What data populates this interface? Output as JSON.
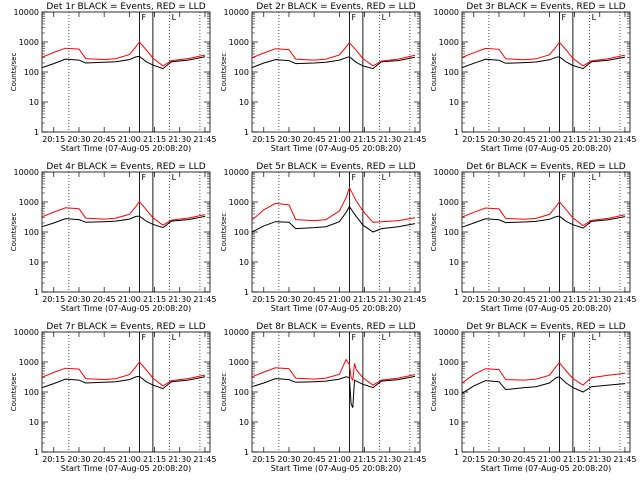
{
  "shared": {
    "xlabel": "Start Time (07-Aug-05 20:08:20)",
    "ylabel": "Counts/sec",
    "x_ticks": [
      "20:15",
      "20:30",
      "20:45",
      "21:00",
      "21:15",
      "21:30",
      "21:45"
    ],
    "y_ticks": [
      "1",
      "10",
      "100",
      "1000",
      "10000"
    ],
    "x_range": [
      "20:08",
      "21:48"
    ],
    "y_range": [
      1,
      10000
    ],
    "y_scale": "log",
    "series_colors": {
      "events": "#000000",
      "lld": "#ff0000"
    },
    "vlines_solid": [
      "21:06",
      "21:14"
    ],
    "vlines_dotted": [
      "20:24",
      "21:24",
      "21:42"
    ],
    "marker_labels": [
      "F",
      "L"
    ]
  },
  "chart_data": [
    {
      "type": "line",
      "title": "Det 1r BLACK = Events, RED = LLD",
      "detector": "1r",
      "x": [
        "20:08",
        "20:15",
        "20:22",
        "20:30",
        "20:34",
        "20:45",
        "20:52",
        "21:00",
        "21:04",
        "21:06",
        "21:10",
        "21:14",
        "21:20",
        "21:25",
        "21:35",
        "21:45"
      ],
      "series": [
        {
          "key": "events",
          "values": [
            140,
            190,
            270,
            250,
            200,
            210,
            220,
            260,
            320,
            330,
            220,
            170,
            130,
            220,
            250,
            320
          ]
        },
        {
          "key": "lld",
          "values": [
            310,
            450,
            620,
            580,
            280,
            260,
            280,
            380,
            700,
            1000,
            550,
            290,
            160,
            240,
            280,
            370
          ]
        }
      ]
    },
    {
      "type": "line",
      "title": "Det 2r BLACK = Events, RED = LLD",
      "detector": "2r",
      "x": [
        "20:08",
        "20:15",
        "20:22",
        "20:30",
        "20:34",
        "20:45",
        "20:52",
        "21:00",
        "21:04",
        "21:06",
        "21:10",
        "21:14",
        "21:20",
        "21:25",
        "21:35",
        "21:45"
      ],
      "series": [
        {
          "key": "events",
          "values": [
            140,
            200,
            260,
            240,
            190,
            200,
            210,
            250,
            300,
            320,
            210,
            160,
            130,
            220,
            240,
            310
          ]
        },
        {
          "key": "lld",
          "values": [
            300,
            430,
            600,
            560,
            270,
            250,
            270,
            370,
            680,
            950,
            530,
            280,
            160,
            230,
            270,
            360
          ]
        }
      ]
    },
    {
      "type": "line",
      "title": "Det 3r BLACK = Events, RED = LLD",
      "detector": "3r",
      "x": [
        "20:08",
        "20:15",
        "20:22",
        "20:30",
        "20:34",
        "20:45",
        "20:52",
        "21:00",
        "21:04",
        "21:06",
        "21:10",
        "21:14",
        "21:20",
        "21:25",
        "21:35",
        "21:45"
      ],
      "series": [
        {
          "key": "events",
          "values": [
            140,
            195,
            265,
            245,
            195,
            205,
            215,
            255,
            310,
            320,
            215,
            165,
            130,
            220,
            245,
            315
          ]
        },
        {
          "key": "lld",
          "values": [
            305,
            440,
            610,
            570,
            275,
            255,
            275,
            375,
            690,
            980,
            540,
            285,
            160,
            235,
            275,
            365
          ]
        }
      ]
    },
    {
      "type": "line",
      "title": "Det 4r BLACK = Events, RED = LLD",
      "detector": "4r",
      "x": [
        "20:08",
        "20:15",
        "20:22",
        "20:30",
        "20:34",
        "20:45",
        "20:52",
        "21:00",
        "21:04",
        "21:06",
        "21:10",
        "21:14",
        "21:20",
        "21:25",
        "21:35",
        "21:45"
      ],
      "series": [
        {
          "key": "events",
          "values": [
            150,
            200,
            280,
            260,
            210,
            220,
            230,
            270,
            330,
            340,
            230,
            180,
            140,
            230,
            260,
            330
          ]
        },
        {
          "key": "lld",
          "values": [
            320,
            460,
            640,
            600,
            290,
            270,
            290,
            390,
            720,
            1050,
            560,
            300,
            170,
            250,
            290,
            380
          ]
        }
      ]
    },
    {
      "type": "line",
      "title": "Det 5r BLACK = Events, RED = LLD",
      "detector": "5r",
      "x": [
        "20:08",
        "20:15",
        "20:22",
        "20:30",
        "20:34",
        "20:45",
        "20:52",
        "21:00",
        "21:04",
        "21:06",
        "21:10",
        "21:14",
        "21:20",
        "21:25",
        "21:35",
        "21:45"
      ],
      "series": [
        {
          "key": "events",
          "values": [
            100,
            160,
            220,
            210,
            130,
            140,
            150,
            220,
            450,
            700,
            330,
            170,
            100,
            130,
            150,
            190
          ]
        },
        {
          "key": "lld",
          "values": [
            250,
            550,
            900,
            800,
            260,
            240,
            260,
            500,
            1400,
            3000,
            1100,
            500,
            210,
            220,
            240,
            300
          ]
        }
      ]
    },
    {
      "type": "line",
      "title": "Det 6r BLACK = Events, RED = LLD",
      "detector": "6r",
      "x": [
        "20:08",
        "20:15",
        "20:22",
        "20:30",
        "20:34",
        "20:45",
        "20:52",
        "21:00",
        "21:04",
        "21:06",
        "21:10",
        "21:14",
        "21:20",
        "21:25",
        "21:35",
        "21:45"
      ],
      "series": [
        {
          "key": "events",
          "values": [
            145,
            200,
            275,
            255,
            205,
            215,
            225,
            265,
            325,
            335,
            225,
            175,
            135,
            225,
            255,
            325
          ]
        },
        {
          "key": "lld",
          "values": [
            315,
            455,
            630,
            590,
            285,
            265,
            285,
            385,
            710,
            1020,
            555,
            295,
            165,
            245,
            285,
            375
          ]
        }
      ]
    },
    {
      "type": "line",
      "title": "Det 7r BLACK = Events, RED = LLD",
      "detector": "7r",
      "x": [
        "20:08",
        "20:15",
        "20:22",
        "20:30",
        "20:34",
        "20:45",
        "20:52",
        "21:00",
        "21:04",
        "21:06",
        "21:10",
        "21:14",
        "21:20",
        "21:25",
        "21:35",
        "21:45"
      ],
      "series": [
        {
          "key": "events",
          "values": [
            140,
            190,
            270,
            250,
            200,
            210,
            220,
            260,
            320,
            330,
            220,
            170,
            130,
            220,
            250,
            320
          ]
        },
        {
          "key": "lld",
          "values": [
            310,
            450,
            620,
            580,
            280,
            260,
            280,
            380,
            700,
            1000,
            550,
            290,
            160,
            240,
            280,
            370
          ]
        }
      ]
    },
    {
      "type": "line",
      "title": "Det 8r BLACK = Events, RED = LLD",
      "detector": "8r",
      "x": [
        "20:08",
        "20:15",
        "20:22",
        "20:30",
        "20:34",
        "20:45",
        "20:52",
        "21:00",
        "21:04",
        "21:06",
        "21:07",
        "21:08",
        "21:09",
        "21:10",
        "21:14",
        "21:20",
        "21:25",
        "21:35",
        "21:45"
      ],
      "series": [
        {
          "key": "events",
          "values": [
            150,
            200,
            280,
            260,
            210,
            220,
            230,
            270,
            320,
            300,
            40,
            30,
            250,
            230,
            180,
            140,
            230,
            260,
            330
          ]
        },
        {
          "key": "lld",
          "values": [
            320,
            460,
            640,
            600,
            290,
            270,
            290,
            390,
            1200,
            800,
            300,
            250,
            900,
            560,
            300,
            170,
            250,
            290,
            380
          ]
        }
      ]
    },
    {
      "type": "line",
      "title": "Det 9r BLACK = Events, RED = LLD",
      "detector": "9r",
      "x": [
        "20:08",
        "20:15",
        "20:22",
        "20:30",
        "20:34",
        "20:45",
        "20:52",
        "21:00",
        "21:04",
        "21:06",
        "21:10",
        "21:14",
        "21:20",
        "21:25",
        "21:35",
        "21:45"
      ],
      "series": [
        {
          "key": "events",
          "values": [
            90,
            160,
            240,
            220,
            120,
            140,
            150,
            200,
            300,
            320,
            200,
            140,
            100,
            150,
            170,
            190
          ]
        },
        {
          "key": "lld",
          "values": [
            200,
            380,
            600,
            560,
            260,
            250,
            270,
            360,
            700,
            950,
            500,
            280,
            170,
            300,
            360,
            420
          ]
        }
      ]
    }
  ]
}
